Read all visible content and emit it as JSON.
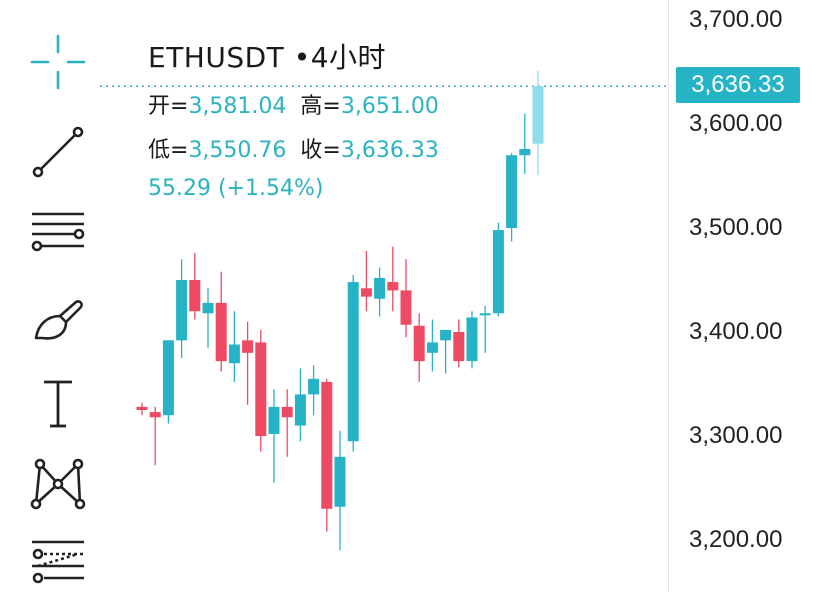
{
  "symbol": "ETHUSDT",
  "interval": "•4小时",
  "ohlc": {
    "open_label": "开=",
    "open": "3,581.04",
    "high_label": "高=",
    "high": "3,651.00",
    "low_label": "低=",
    "low": "3,550.76",
    "close_label": "收=",
    "close": "3,636.33"
  },
  "change_text": "55.29 (+1.54%)",
  "last_price_tag": "3,636.33",
  "price_axis_labels": [
    "3,700.00",
    "3,600.00",
    "3,500.00",
    "3,400.00",
    "3,300.00",
    "3,200.00"
  ],
  "colors": {
    "up": "#27b3c6",
    "down": "#ee4a63",
    "live": "#8fdde8",
    "bg": "#ffffff"
  },
  "toolbar_icons": [
    "crosshair-icon",
    "trend-line-icon",
    "horizontal-lines-icon",
    "brush-icon",
    "text-icon",
    "pattern-icon",
    "fib-tools-icon"
  ],
  "chart_data": {
    "type": "candlestick",
    "ylim": [
      3170,
      3720
    ],
    "price_ticks": [
      3700,
      3600,
      3500,
      3400,
      3300,
      3200
    ],
    "last_price": 3636.33,
    "candles": [
      {
        "o": 3328,
        "h": 3332,
        "l": 3320,
        "c": 3325
      },
      {
        "o": 3323,
        "h": 3328,
        "l": 3272,
        "c": 3318
      },
      {
        "o": 3320,
        "h": 3392,
        "l": 3312,
        "c": 3392
      },
      {
        "o": 3392,
        "h": 3470,
        "l": 3375,
        "c": 3450
      },
      {
        "o": 3450,
        "h": 3476,
        "l": 3412,
        "c": 3420
      },
      {
        "o": 3418,
        "h": 3442,
        "l": 3385,
        "c": 3428
      },
      {
        "o": 3428,
        "h": 3458,
        "l": 3362,
        "c": 3372
      },
      {
        "o": 3370,
        "h": 3420,
        "l": 3352,
        "c": 3388
      },
      {
        "o": 3392,
        "h": 3410,
        "l": 3330,
        "c": 3380
      },
      {
        "o": 3390,
        "h": 3402,
        "l": 3285,
        "c": 3300
      },
      {
        "o": 3302,
        "h": 3345,
        "l": 3255,
        "c": 3328
      },
      {
        "o": 3328,
        "h": 3345,
        "l": 3280,
        "c": 3318
      },
      {
        "o": 3310,
        "h": 3365,
        "l": 3295,
        "c": 3340
      },
      {
        "o": 3340,
        "h": 3368,
        "l": 3320,
        "c": 3355
      },
      {
        "o": 3352,
        "h": 3355,
        "l": 3208,
        "c": 3230
      },
      {
        "o": 3232,
        "h": 3305,
        "l": 3190,
        "c": 3280
      },
      {
        "o": 3295,
        "h": 3455,
        "l": 3285,
        "c": 3448
      },
      {
        "o": 3442,
        "h": 3478,
        "l": 3420,
        "c": 3434
      },
      {
        "o": 3432,
        "h": 3462,
        "l": 3415,
        "c": 3452
      },
      {
        "o": 3448,
        "h": 3482,
        "l": 3420,
        "c": 3440
      },
      {
        "o": 3440,
        "h": 3470,
        "l": 3395,
        "c": 3407
      },
      {
        "o": 3406,
        "h": 3418,
        "l": 3352,
        "c": 3372
      },
      {
        "o": 3380,
        "h": 3412,
        "l": 3362,
        "c": 3390
      },
      {
        "o": 3392,
        "h": 3402,
        "l": 3360,
        "c": 3402
      },
      {
        "o": 3400,
        "h": 3412,
        "l": 3366,
        "c": 3372
      },
      {
        "o": 3372,
        "h": 3420,
        "l": 3365,
        "c": 3414
      },
      {
        "o": 3416,
        "h": 3425,
        "l": 3380,
        "c": 3418
      },
      {
        "o": 3418,
        "h": 3505,
        "l": 3415,
        "c": 3498
      },
      {
        "o": 3500,
        "h": 3572,
        "l": 3487,
        "c": 3570
      },
      {
        "o": 3570,
        "h": 3610,
        "l": 3552,
        "c": 3576
      },
      {
        "o": 3581.04,
        "h": 3651.0,
        "l": 3550.76,
        "c": 3636.33
      }
    ]
  }
}
